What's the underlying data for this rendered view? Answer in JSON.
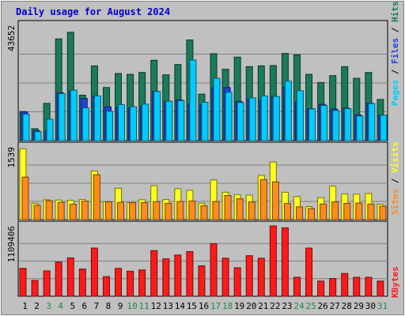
{
  "chart_data": {
    "type": "bar",
    "title": "Daily usage for August 2024",
    "colors": {
      "background": "#c0c0c0",
      "plot": "#c0c0c0",
      "hits": "#1b7a5a",
      "files": "#2040e0",
      "pages": "#00ccff",
      "visits": "#ffff20",
      "sites": "#ff8c1a",
      "kbytes": "#ff1a1a",
      "weekday_label": "#000000",
      "weekend_label": "#1a8a4a"
    },
    "categories": [
      "1",
      "2",
      "3",
      "4",
      "5",
      "6",
      "7",
      "8",
      "9",
      "10",
      "11",
      "12",
      "13",
      "14",
      "15",
      "16",
      "17",
      "18",
      "19",
      "20",
      "21",
      "22",
      "23",
      "24",
      "25",
      "26",
      "27",
      "28",
      "29",
      "30",
      "31"
    ],
    "weekend_days": [
      "3",
      "4",
      "10",
      "11",
      "17",
      "18",
      "24",
      "25",
      "31"
    ],
    "panels": [
      {
        "id": "hits-panel",
        "y_max_label": "43652",
        "ylim": [
          0,
          43652
        ],
        "legend": [
          {
            "label": "Hits",
            "color": "#1b7a5a"
          },
          {
            "label": "Files",
            "color": "#2040e0"
          },
          {
            "label": "Pages",
            "color": "#00ccff"
          }
        ],
        "separator": " / ",
        "series": [
          {
            "key": "hits",
            "values": [
              11000,
              4500,
              14100,
              38500,
              41000,
              17200,
              28300,
              20100,
              25400,
              25100,
              25800,
              30400,
              24900,
              28800,
              38100,
              17600,
              32900,
              27000,
              31600,
              28000,
              28300,
              28400,
              33000,
              32500,
              25100,
              22000,
              24600,
              28000,
              23600,
              25800,
              15600
            ]
          },
          {
            "key": "files",
            "values": [
              10900,
              3800,
              3700,
              18100,
              18800,
              16000,
              16800,
              12800,
              12600,
              12400,
              13100,
              18600,
              14800,
              15400,
              13800,
              13700,
              20000,
              20100,
              14800,
              15800,
              15200,
              16500,
              20300,
              14600,
              12100,
              13700,
              11900,
              12300,
              9700,
              14100,
              9600
            ]
          },
          {
            "key": "pages",
            "values": [
              10000,
              3400,
              8100,
              17800,
              19100,
              12400,
              16900,
              11100,
              13600,
              12800,
              13800,
              18600,
              14900,
              15100,
              30500,
              14500,
              23600,
              18300,
              14400,
              16200,
              16900,
              16700,
              22500,
              18900,
              12000,
              13300,
              11400,
              12100,
              9300,
              14000,
              9600
            ]
          }
        ]
      },
      {
        "id": "visits-panel",
        "y_max_label": "1539",
        "ylim": [
          0,
          1539
        ],
        "legend": [
          {
            "label": "Visits",
            "color": "#ffff20"
          },
          {
            "label": "Sites",
            "color": "#ff8c1a"
          }
        ],
        "separator": " / ",
        "series": [
          {
            "key": "visits",
            "values": [
              1500,
              345,
              420,
              415,
              410,
              425,
              1030,
              380,
              665,
              360,
              420,
              720,
              425,
              655,
              620,
              345,
              840,
              580,
              530,
              520,
              935,
              1220,
              580,
              490,
              275,
              465,
              710,
              545,
              540,
              555,
              325
            ]
          },
          {
            "key": "sites",
            "values": [
              900,
              305,
              400,
              365,
              325,
              390,
              950,
              375,
              365,
              360,
              360,
              380,
              345,
              385,
              395,
              295,
              385,
              510,
              440,
              375,
              845,
              800,
              340,
              270,
              235,
              330,
              375,
              345,
              350,
              330,
              285
            ]
          }
        ]
      },
      {
        "id": "kbytes-panel",
        "y_max_label": "1109406",
        "ylim": [
          0,
          1109406
        ],
        "legend": [
          {
            "label": "KBytes",
            "color": "#ff1a1a"
          }
        ],
        "separator": "",
        "series": [
          {
            "key": "kbytes",
            "values": [
              440000,
              250000,
              400000,
              540000,
              605000,
              430000,
              760000,
              310000,
              440000,
              395000,
              415000,
              720000,
              590000,
              650000,
              705000,
              480000,
              830000,
              600000,
              450000,
              640000,
              600000,
              1109406,
              1080000,
              300000,
              760000,
              240000,
              280000,
              360000,
              300000,
              300000,
              240000
            ]
          }
        ]
      }
    ]
  }
}
